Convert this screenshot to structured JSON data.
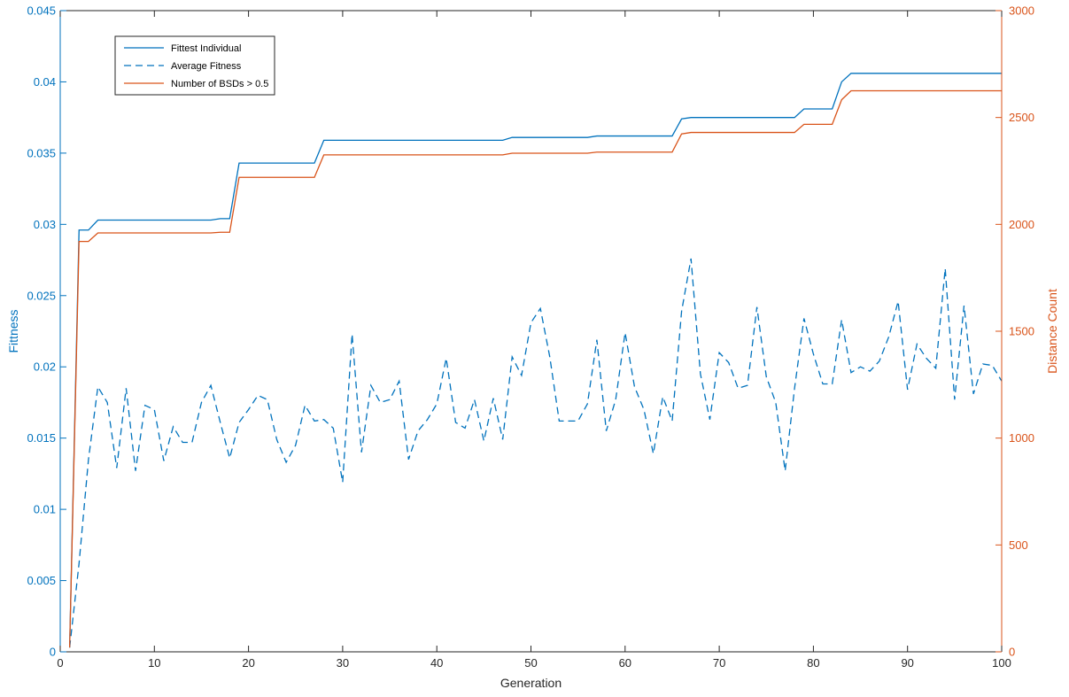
{
  "chart_data": {
    "type": "line",
    "xlabel": "Generation",
    "ylabel_left": "Fittness",
    "ylabel_right": "Distance Count",
    "xlim": [
      0,
      100
    ],
    "ylim_left": [
      0,
      0.045
    ],
    "ylim_right": [
      0,
      3000
    ],
    "x_ticks": [
      "0",
      "10",
      "20",
      "30",
      "40",
      "50",
      "60",
      "70",
      "80",
      "90",
      "100"
    ],
    "y_left_ticks": [
      "0",
      "0.005",
      "0.01",
      "0.015",
      "0.02",
      "0.025",
      "0.03",
      "0.035",
      "0.04",
      "0.045"
    ],
    "y_right_ticks": [
      "0",
      "500",
      "1000",
      "1500",
      "2000",
      "2500",
      "3000"
    ],
    "grid": false,
    "legend_position": "top-left",
    "colors": {
      "left_axis": "#0072BD",
      "right_axis": "#D95319",
      "fittest": "#0072BD",
      "average": "#0072BD",
      "bsd": "#D95319",
      "box": "#262626"
    },
    "series": [
      {
        "name": "Fittest Individual",
        "axis": "left",
        "style": "solid",
        "points": [
          [
            1,
            0.0003
          ],
          [
            2,
            0.0296
          ],
          [
            3,
            0.0296
          ],
          [
            4,
            0.0303
          ],
          [
            5,
            0.0303
          ],
          [
            16,
            0.0303
          ],
          [
            17,
            0.0304
          ],
          [
            18,
            0.0304
          ],
          [
            19,
            0.0343
          ],
          [
            27,
            0.0343
          ],
          [
            28,
            0.0359
          ],
          [
            47,
            0.0359
          ],
          [
            48,
            0.0361
          ],
          [
            56,
            0.0361
          ],
          [
            57,
            0.0362
          ],
          [
            65,
            0.0362
          ],
          [
            66,
            0.0374
          ],
          [
            67,
            0.0375
          ],
          [
            78,
            0.0375
          ],
          [
            79,
            0.0381
          ],
          [
            82,
            0.0381
          ],
          [
            83,
            0.04
          ],
          [
            84,
            0.0406
          ],
          [
            100,
            0.0406
          ]
        ]
      },
      {
        "name": "Average Fitness",
        "axis": "left",
        "style": "dashed",
        "points": [
          [
            1,
            0.0003
          ],
          [
            2,
            0.0062
          ],
          [
            3,
            0.0135
          ],
          [
            4,
            0.0186
          ],
          [
            5,
            0.0175
          ],
          [
            6,
            0.0129
          ],
          [
            7,
            0.0185
          ],
          [
            8,
            0.0127
          ],
          [
            9,
            0.0173
          ],
          [
            10,
            0.017
          ],
          [
            11,
            0.0134
          ],
          [
            12,
            0.0158
          ],
          [
            13,
            0.0147
          ],
          [
            14,
            0.0147
          ],
          [
            15,
            0.0175
          ],
          [
            16,
            0.0187
          ],
          [
            17,
            0.0161
          ],
          [
            18,
            0.0136
          ],
          [
            19,
            0.0161
          ],
          [
            20,
            0.017
          ],
          [
            21,
            0.018
          ],
          [
            22,
            0.0177
          ],
          [
            23,
            0.0149
          ],
          [
            24,
            0.0133
          ],
          [
            25,
            0.0145
          ],
          [
            26,
            0.0173
          ],
          [
            27,
            0.0162
          ],
          [
            28,
            0.0163
          ],
          [
            29,
            0.0157
          ],
          [
            30,
            0.0119
          ],
          [
            31,
            0.0223
          ],
          [
            32,
            0.014
          ],
          [
            33,
            0.0187
          ],
          [
            34,
            0.0175
          ],
          [
            35,
            0.0177
          ],
          [
            36,
            0.019
          ],
          [
            37,
            0.0135
          ],
          [
            38,
            0.0155
          ],
          [
            39,
            0.0163
          ],
          [
            40,
            0.0174
          ],
          [
            41,
            0.0206
          ],
          [
            42,
            0.0161
          ],
          [
            43,
            0.0157
          ],
          [
            44,
            0.0177
          ],
          [
            45,
            0.0148
          ],
          [
            46,
            0.0178
          ],
          [
            47,
            0.0149
          ],
          [
            48,
            0.0207
          ],
          [
            49,
            0.0194
          ],
          [
            50,
            0.0231
          ],
          [
            51,
            0.0241
          ],
          [
            52,
            0.0207
          ],
          [
            53,
            0.0162
          ],
          [
            54,
            0.0162
          ],
          [
            55,
            0.0162
          ],
          [
            56,
            0.0174
          ],
          [
            57,
            0.0219
          ],
          [
            58,
            0.0155
          ],
          [
            59,
            0.0177
          ],
          [
            60,
            0.0224
          ],
          [
            61,
            0.0186
          ],
          [
            62,
            0.017
          ],
          [
            63,
            0.0139
          ],
          [
            64,
            0.0179
          ],
          [
            65,
            0.0162
          ],
          [
            66,
            0.0239
          ],
          [
            67,
            0.0276
          ],
          [
            68,
            0.0195
          ],
          [
            69,
            0.0163
          ],
          [
            70,
            0.021
          ],
          [
            71,
            0.0203
          ],
          [
            72,
            0.0185
          ],
          [
            73,
            0.0187
          ],
          [
            74,
            0.0242
          ],
          [
            75,
            0.0193
          ],
          [
            76,
            0.0175
          ],
          [
            77,
            0.0127
          ],
          [
            78,
            0.0185
          ],
          [
            79,
            0.0234
          ],
          [
            80,
            0.0209
          ],
          [
            81,
            0.0188
          ],
          [
            82,
            0.0188
          ],
          [
            83,
            0.0233
          ],
          [
            84,
            0.0196
          ],
          [
            85,
            0.02
          ],
          [
            86,
            0.0197
          ],
          [
            87,
            0.0204
          ],
          [
            88,
            0.0221
          ],
          [
            89,
            0.0246
          ],
          [
            90,
            0.0184
          ],
          [
            91,
            0.0216
          ],
          [
            92,
            0.0206
          ],
          [
            93,
            0.0199
          ],
          [
            94,
            0.0269
          ],
          [
            95,
            0.0177
          ],
          [
            96,
            0.0243
          ],
          [
            97,
            0.0181
          ],
          [
            98,
            0.0202
          ],
          [
            99,
            0.0201
          ],
          [
            100,
            0.019
          ]
        ]
      },
      {
        "name": "Number of BSDs > 0.5",
        "axis": "right",
        "style": "solid",
        "points": [
          [
            1,
            20
          ],
          [
            2,
            1920
          ],
          [
            3,
            1920
          ],
          [
            4,
            1960
          ],
          [
            5,
            1960
          ],
          [
            16,
            1960
          ],
          [
            17,
            1963
          ],
          [
            18,
            1963
          ],
          [
            19,
            2220
          ],
          [
            27,
            2220
          ],
          [
            28,
            2325
          ],
          [
            47,
            2325
          ],
          [
            48,
            2333
          ],
          [
            56,
            2333
          ],
          [
            57,
            2338
          ],
          [
            65,
            2338
          ],
          [
            66,
            2423
          ],
          [
            67,
            2430
          ],
          [
            78,
            2430
          ],
          [
            79,
            2468
          ],
          [
            82,
            2468
          ],
          [
            83,
            2583
          ],
          [
            84,
            2625
          ],
          [
            100,
            2625
          ]
        ]
      }
    ]
  }
}
